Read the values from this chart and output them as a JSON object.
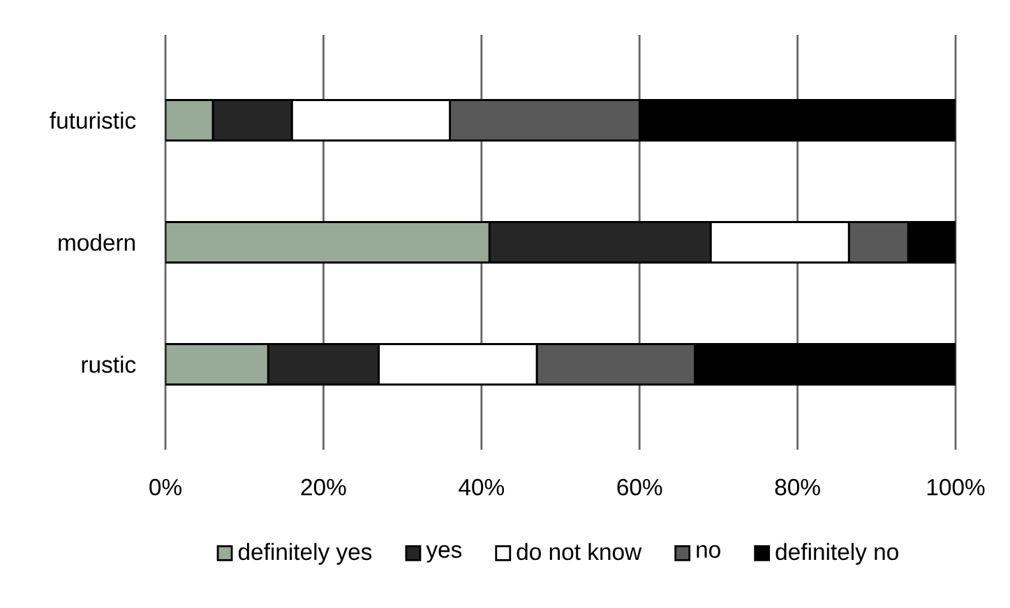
{
  "chart_data": {
    "type": "bar",
    "orientation": "horizontal",
    "stacked": true,
    "categories": [
      "futuristic",
      "modern",
      "rustic"
    ],
    "series": [
      {
        "name": "definitely yes",
        "color": "#97ab97",
        "values": [
          6,
          41,
          13
        ]
      },
      {
        "name": "yes",
        "color": "#262626",
        "values": [
          10,
          28,
          14
        ]
      },
      {
        "name": "do not know",
        "color": "#ffffff",
        "values": [
          20,
          17.5,
          20
        ]
      },
      {
        "name": "no",
        "color": "#595959",
        "values": [
          24,
          7.5,
          20
        ]
      },
      {
        "name": "definitely no",
        "color": "#000000",
        "values": [
          40,
          6,
          33
        ]
      }
    ],
    "xlim": [
      0,
      100
    ],
    "xticks": [
      {
        "value": 0,
        "label": "0%"
      },
      {
        "value": 20,
        "label": "20%"
      },
      {
        "value": 40,
        "label": "40%"
      },
      {
        "value": 60,
        "label": "60%"
      },
      {
        "value": 80,
        "label": "80%"
      },
      {
        "value": 100,
        "label": "100%"
      }
    ],
    "grid": "x",
    "legend": "bottom"
  }
}
